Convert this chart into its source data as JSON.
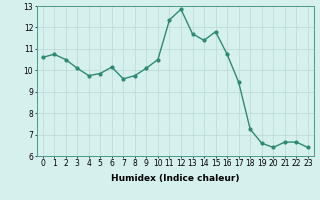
{
  "xlabel": "Humidex (Indice chaleur)",
  "ylabel": "",
  "x": [
    0,
    1,
    2,
    3,
    4,
    5,
    6,
    7,
    8,
    9,
    10,
    11,
    12,
    13,
    14,
    15,
    16,
    17,
    18,
    19,
    20,
    21,
    22,
    23
  ],
  "y": [
    10.6,
    10.75,
    10.5,
    10.1,
    9.75,
    9.85,
    10.15,
    9.6,
    9.75,
    10.1,
    10.5,
    12.35,
    12.85,
    11.7,
    11.4,
    11.8,
    10.75,
    9.45,
    7.25,
    6.6,
    6.4,
    6.65,
    6.65,
    6.4
  ],
  "line_color": "#2e8b6e",
  "marker": "o",
  "markersize": 2,
  "linewidth": 1.0,
  "bg_color": "#d6f0ee",
  "grid_color": "#b8d8d4",
  "xlim": [
    -0.5,
    23.5
  ],
  "ylim": [
    6,
    13
  ],
  "yticks": [
    6,
    7,
    8,
    9,
    10,
    11,
    12,
    13
  ],
  "xticks": [
    0,
    1,
    2,
    3,
    4,
    5,
    6,
    7,
    8,
    9,
    10,
    11,
    12,
    13,
    14,
    15,
    16,
    17,
    18,
    19,
    20,
    21,
    22,
    23
  ],
  "tick_fontsize": 5.5,
  "xlabel_fontsize": 6.5
}
